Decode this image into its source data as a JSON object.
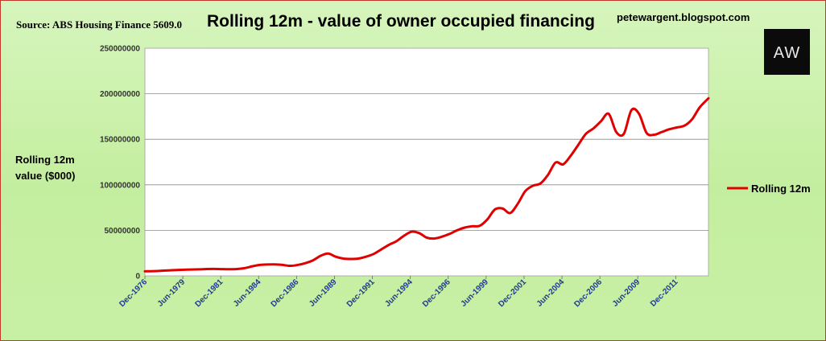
{
  "header": {
    "source": "Source: ABS Housing Finance 5609.0",
    "title": "Rolling 12m - value of owner occupied financing",
    "blog": "petewargent.blogspot.com",
    "logo_text": "AW"
  },
  "chart_data": {
    "type": "line",
    "title": "Rolling 12m - value of owner occupied financing",
    "ylabel_lines": [
      "Rolling 12m",
      "value ($000)"
    ],
    "ylim": [
      0,
      250000000
    ],
    "yticks": [
      0,
      50000000,
      100000000,
      150000000,
      200000000,
      250000000
    ],
    "ytick_labels": [
      "0",
      "50000000",
      "100000000",
      "150000000",
      "200000000",
      "250000000"
    ],
    "xlim": [
      1976.92,
      2014.08
    ],
    "xticks": [
      1976.92,
      1979.42,
      1981.92,
      1984.42,
      1986.92,
      1989.42,
      1991.92,
      1994.42,
      1996.92,
      1999.42,
      2001.92,
      2004.42,
      2006.92,
      2009.42,
      2011.92
    ],
    "xtick_labels": [
      "Dec-1976",
      "Jun-1979",
      "Dec-1981",
      "Jun-1984",
      "Dec-1986",
      "Jun-1989",
      "Dec-1991",
      "Jun-1994",
      "Dec-1996",
      "Jun-1999",
      "Dec-2001",
      "Jun-2004",
      "Dec-2006",
      "Jun-2009",
      "Dec-2011"
    ],
    "grid": "horizontal",
    "legend_position": "right",
    "series": [
      {
        "name": "Rolling 12m",
        "color": "#e00000",
        "x": [
          1976.92,
          1977.5,
          1978.0,
          1978.5,
          1979.0,
          1979.5,
          1980.0,
          1980.5,
          1981.0,
          1981.5,
          1982.0,
          1982.5,
          1983.0,
          1983.5,
          1984.0,
          1984.5,
          1985.0,
          1985.5,
          1986.0,
          1986.5,
          1987.0,
          1987.5,
          1988.0,
          1988.5,
          1989.0,
          1989.5,
          1990.0,
          1990.5,
          1991.0,
          1991.5,
          1992.0,
          1992.5,
          1993.0,
          1993.5,
          1994.0,
          1994.5,
          1995.0,
          1995.5,
          1996.0,
          1996.5,
          1997.0,
          1997.5,
          1998.0,
          1998.5,
          1999.0,
          1999.5,
          2000.0,
          2000.5,
          2001.0,
          2001.5,
          2002.0,
          2002.5,
          2003.0,
          2003.5,
          2004.0,
          2004.5,
          2005.0,
          2005.5,
          2006.0,
          2006.5,
          2007.0,
          2007.5,
          2008.0,
          2008.5,
          2009.0,
          2009.5,
          2010.0,
          2010.5,
          2011.0,
          2011.5,
          2012.0,
          2012.5,
          2013.0,
          2013.5,
          2014.08
        ],
        "values": [
          5000000,
          5200000,
          5600000,
          6000000,
          6400000,
          6700000,
          7000000,
          7200000,
          7500000,
          7600000,
          7400000,
          7300000,
          7500000,
          8500000,
          10500000,
          12000000,
          12500000,
          12600000,
          12000000,
          11000000,
          12000000,
          14000000,
          17000000,
          22000000,
          24500000,
          21000000,
          19000000,
          18500000,
          19000000,
          21000000,
          24000000,
          29000000,
          34000000,
          38000000,
          44000000,
          48500000,
          47000000,
          42000000,
          41000000,
          43000000,
          46000000,
          50000000,
          53000000,
          54500000,
          55000000,
          62000000,
          73000000,
          74000000,
          69000000,
          79000000,
          93000000,
          99000000,
          101500000,
          111000000,
          124500000,
          122500000,
          132000000,
          144000000,
          156000000,
          162000000,
          170000000,
          178000000,
          158000000,
          156000000,
          182000000,
          178000000,
          157000000,
          155000000,
          158000000,
          161000000,
          163000000,
          165000000,
          172000000,
          185000000,
          195000000
        ]
      }
    ]
  }
}
